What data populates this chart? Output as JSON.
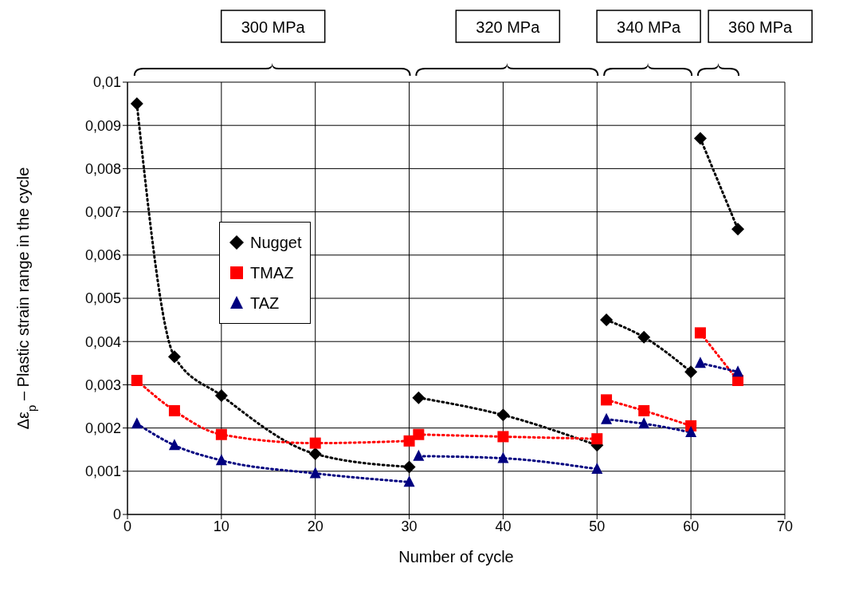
{
  "chart_data": {
    "type": "line",
    "xlabel": "Number of cycle",
    "ylabel": "Δε$_{p}$ – Plastic strain range in the cycle",
    "annotations": [
      "300 MPa",
      "320 MPa",
      "340 MPa",
      "360 MPa"
    ],
    "xlim": [
      0,
      70
    ],
    "xticks": [
      0,
      10,
      20,
      30,
      40,
      50,
      60,
      70
    ],
    "ylim": [
      0,
      0.01
    ],
    "yticks": [
      0,
      {
        "value": 0.001,
        "label": "0,001"
      },
      {
        "value": 0.002,
        "label": "0,002"
      },
      {
        "value": 0.003,
        "label": "0,003"
      },
      {
        "value": 0.004,
        "label": "0,004"
      },
      {
        "value": 0.005,
        "label": "0,005"
      },
      {
        "value": 0.006,
        "label": "0,006"
      },
      {
        "value": 0.007,
        "label": "0,007"
      },
      {
        "value": 0.008,
        "label": "0,008"
      },
      {
        "value": 0.009,
        "label": "0,009"
      },
      {
        "value": 0.01,
        "label": "0,01"
      }
    ],
    "grid": true,
    "legend": "left",
    "line_style": "dotted",
    "series": [
      {
        "name": "Nugget",
        "color": "#000000",
        "marker": "diamond",
        "x": [
          1,
          5,
          10,
          20,
          30
        ],
        "values": [
          0.0095,
          0.00365,
          0.00275,
          0.0014,
          0.0011
        ]
      },
      {
        "color": "#000000",
        "marker": "diamond",
        "x": [
          31,
          40,
          50
        ],
        "values": [
          0.0027,
          0.0023,
          0.0016
        ]
      },
      {
        "color": "#000000",
        "marker": "diamond",
        "x": [
          51,
          55,
          60
        ],
        "values": [
          0.0045,
          0.0041,
          0.0033
        ]
      },
      {
        "color": "#000000",
        "marker": "diamond",
        "x": [
          61,
          65
        ],
        "values": [
          0.0087,
          0.0066
        ]
      },
      {
        "name": "TMAZ",
        "color": "#ff0000",
        "marker": "square",
        "x": [
          1,
          5,
          10,
          20,
          30
        ],
        "values": [
          0.0031,
          0.0024,
          0.00185,
          0.00165,
          0.0017
        ]
      },
      {
        "color": "#ff0000",
        "marker": "square",
        "x": [
          31,
          40,
          50
        ],
        "values": [
          0.00185,
          0.0018,
          0.00175
        ]
      },
      {
        "color": "#ff0000",
        "marker": "square",
        "x": [
          51,
          55,
          60
        ],
        "values": [
          0.00265,
          0.0024,
          0.00205
        ]
      },
      {
        "color": "#ff0000",
        "marker": "square",
        "x": [
          61,
          65
        ],
        "values": [
          0.0042,
          0.0031
        ]
      },
      {
        "name": "TAZ",
        "color": "#000080",
        "marker": "triangle",
        "x": [
          1,
          5,
          10,
          20,
          30
        ],
        "values": [
          0.0021,
          0.0016,
          0.00125,
          0.00095,
          0.00075
        ]
      },
      {
        "color": "#000080",
        "marker": "triangle",
        "x": [
          31,
          40,
          50
        ],
        "values": [
          0.00135,
          0.0013,
          0.00105
        ]
      },
      {
        "color": "#000080",
        "marker": "triangle",
        "x": [
          51,
          55,
          60
        ],
        "values": [
          0.0022,
          0.0021,
          0.0019
        ]
      },
      {
        "color": "#000080",
        "marker": "triangle",
        "x": [
          61,
          65
        ],
        "values": [
          0.0035,
          0.0033
        ]
      }
    ]
  }
}
